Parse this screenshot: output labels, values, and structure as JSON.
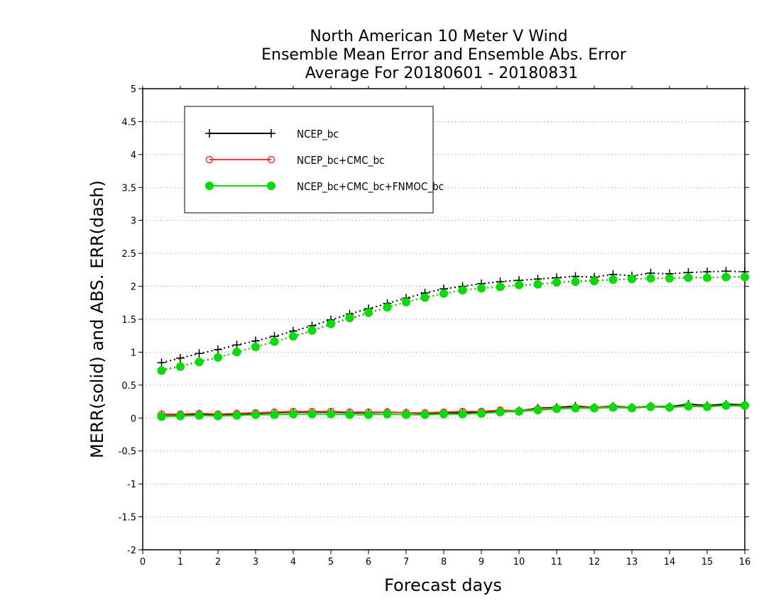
{
  "chart_data": {
    "type": "line",
    "title_lines": [
      "North American 10 Meter V Wind",
      "Ensemble Mean Error and Ensemble Abs. Error",
      "Average For 20180601 - 20180831"
    ],
    "xlabel": "Forecast days",
    "ylabel": "MERR(solid) and ABS. ERR(dash)",
    "xlim": [
      0,
      16
    ],
    "ylim": [
      -2,
      5
    ],
    "x_ticks": [
      0,
      1,
      2,
      3,
      4,
      5,
      6,
      7,
      8,
      9,
      10,
      11,
      12,
      13,
      14,
      15,
      16
    ],
    "y_ticks": [
      -2,
      -1.5,
      -1,
      -0.5,
      0,
      0.5,
      1,
      1.5,
      2,
      2.5,
      3,
      3.5,
      4,
      4.5,
      5
    ],
    "y_tick_labels": [
      "-2",
      "-1.5",
      "-1",
      "-0.5",
      "0",
      "0.5",
      "1",
      "1.5",
      "2",
      "2.5",
      "3",
      "3.5",
      "4",
      "4.5",
      "5"
    ],
    "grid": "horizontal-dotted",
    "legend_position": "top-left",
    "x": [
      0.5,
      1,
      1.5,
      2,
      2.5,
      3,
      3.5,
      4,
      4.5,
      5,
      5.5,
      6,
      6.5,
      7,
      7.5,
      8,
      8.5,
      9,
      9.5,
      10,
      10.5,
      11,
      11.5,
      12,
      12.5,
      13,
      13.5,
      14,
      14.5,
      15,
      15.5,
      16
    ],
    "series": [
      {
        "name": "NCEP_bc",
        "color": "#000000",
        "marker": "plus",
        "merr": [
          0.05,
          0.05,
          0.06,
          0.05,
          0.06,
          0.07,
          0.08,
          0.09,
          0.09,
          0.09,
          0.08,
          0.08,
          0.09,
          0.08,
          0.07,
          0.08,
          0.08,
          0.09,
          0.1,
          0.11,
          0.15,
          0.16,
          0.18,
          0.16,
          0.18,
          0.16,
          0.18,
          0.17,
          0.21,
          0.19,
          0.21,
          0.2
        ],
        "abs_err": [
          0.84,
          0.91,
          0.98,
          1.04,
          1.11,
          1.17,
          1.24,
          1.32,
          1.4,
          1.49,
          1.58,
          1.66,
          1.74,
          1.82,
          1.9,
          1.96,
          2.0,
          2.04,
          2.07,
          2.09,
          2.11,
          2.13,
          2.15,
          2.14,
          2.18,
          2.16,
          2.2,
          2.19,
          2.21,
          2.22,
          2.23,
          2.22
        ]
      },
      {
        "name": "NCEP_bc+CMC_bc",
        "color": "#ff3333",
        "marker": "open-circle",
        "merr": [
          0.06,
          0.06,
          0.07,
          0.06,
          0.07,
          0.08,
          0.09,
          0.1,
          0.1,
          0.1,
          0.09,
          0.09,
          0.09,
          0.08,
          0.08,
          0.09,
          0.1,
          0.1,
          0.12,
          0.11,
          0.14,
          0.15,
          0.16,
          0.16,
          0.17,
          0.16,
          0.18,
          0.16,
          0.19,
          0.18,
          0.19,
          0.18
        ],
        "abs_err": [
          0.73,
          0.79,
          0.86,
          0.92,
          1.0,
          1.08,
          1.16,
          1.24,
          1.32,
          1.42,
          1.51,
          1.59,
          1.68,
          1.76,
          1.83,
          1.89,
          1.94,
          1.97,
          1.99,
          2.02,
          2.03,
          2.06,
          2.08,
          2.09,
          2.1,
          2.11,
          2.12,
          2.12,
          2.14,
          2.13,
          2.14,
          2.15
        ]
      },
      {
        "name": "NCEP_bc+CMC_bc+FNMOC_bc",
        "color": "#00dd00",
        "marker": "filled-circle",
        "merr": [
          0.02,
          0.03,
          0.04,
          0.03,
          0.04,
          0.05,
          0.05,
          0.06,
          0.06,
          0.06,
          0.05,
          0.05,
          0.06,
          0.05,
          0.05,
          0.06,
          0.06,
          0.07,
          0.09,
          0.1,
          0.12,
          0.14,
          0.15,
          0.15,
          0.16,
          0.15,
          0.17,
          0.16,
          0.18,
          0.17,
          0.19,
          0.19
        ],
        "abs_err": [
          0.72,
          0.78,
          0.85,
          0.92,
          1.0,
          1.08,
          1.16,
          1.24,
          1.33,
          1.43,
          1.52,
          1.6,
          1.68,
          1.76,
          1.83,
          1.89,
          1.94,
          1.97,
          1.99,
          2.02,
          2.03,
          2.06,
          2.07,
          2.08,
          2.1,
          2.11,
          2.12,
          2.12,
          2.13,
          2.13,
          2.14,
          2.14
        ]
      }
    ]
  }
}
